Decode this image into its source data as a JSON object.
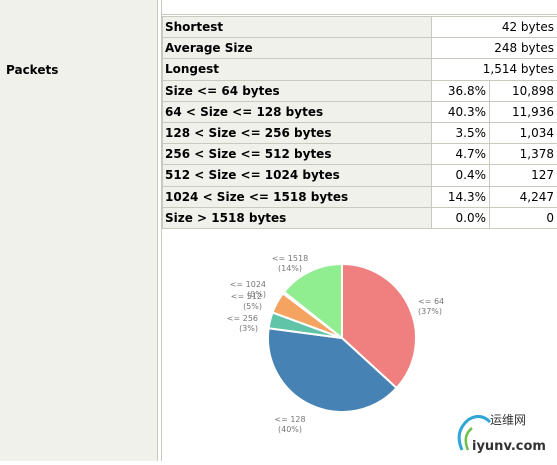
{
  "section_label": "Packets",
  "rows": [
    {
      "name": "Shortest",
      "value": "42 bytes"
    },
    {
      "name": "Average Size",
      "value": "248 bytes"
    },
    {
      "name": "Longest",
      "value": "1,514 bytes"
    },
    {
      "name": "Size <= 64 bytes",
      "pct": "36.8%",
      "count": "10,898"
    },
    {
      "name": "64 < Size <= 128 bytes",
      "pct": "40.3%",
      "count": "11,936"
    },
    {
      "name": "128 < Size <= 256 bytes",
      "pct": "3.5%",
      "count": "1,034"
    },
    {
      "name": "256 < Size <= 512 bytes",
      "pct": "4.7%",
      "count": "1,378"
    },
    {
      "name": "512 < Size <= 1024 bytes",
      "pct": "0.4%",
      "count": "127"
    },
    {
      "name": "1024 < Size <= 1518 bytes",
      "pct": "14.3%",
      "count": "4,247"
    },
    {
      "name": "Size > 1518 bytes",
      "pct": "0.0%",
      "count": "0"
    }
  ],
  "chart_data": {
    "type": "pie",
    "slices": [
      {
        "label": "<= 64",
        "pct_label": "(37%)",
        "value": 36.8,
        "color": "#f08080"
      },
      {
        "label": "<= 128",
        "pct_label": "(40%)",
        "value": 40.3,
        "color": "#4682b4"
      },
      {
        "label": "<= 256",
        "pct_label": "(3%)",
        "value": 3.5,
        "color": "#5fc4a8"
      },
      {
        "label": "<= 512",
        "pct_label": "(5%)",
        "value": 4.7,
        "color": "#f4a460"
      },
      {
        "label": "<= 1024",
        "pct_label": "(0%)",
        "value": 0.4,
        "color": "#9370db"
      },
      {
        "label": "<= 1518",
        "pct_label": "(14%)",
        "value": 14.3,
        "color": "#90ee90"
      }
    ]
  },
  "watermark": "运维网 iyunv.com"
}
